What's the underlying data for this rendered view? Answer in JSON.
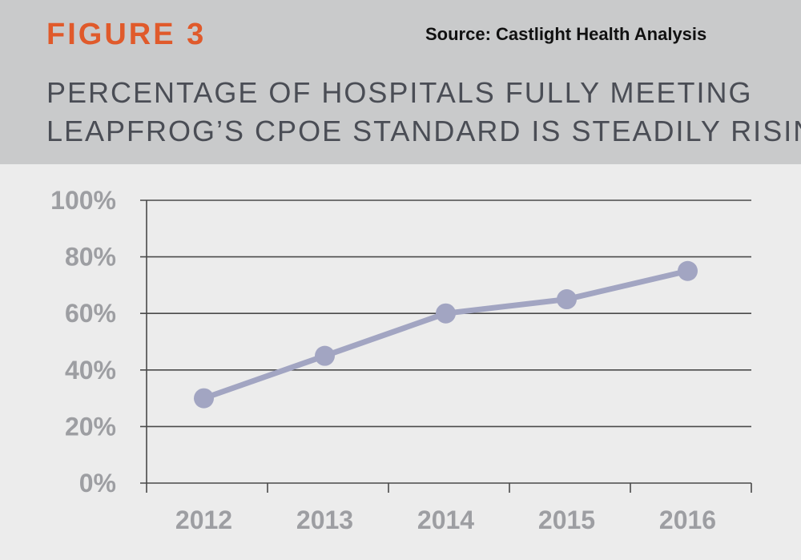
{
  "header": {
    "figure_label": "FIGURE 3",
    "source": "Source: Castlight Health Analysis",
    "title_line1": "PERCENTAGE OF HOSPITALS FULLY MEETING",
    "title_line2": "LEAPFROG’S CPOE STANDARD IS STEADILY RISING"
  },
  "colors": {
    "accent": "#e05a2b",
    "header_bg": "#c9cacb",
    "plot_bg": "#ececec",
    "series": "#a2a5c2",
    "grid": "#4a4a4a",
    "tick_text": "#9d9ea2"
  },
  "chart_data": {
    "type": "line",
    "categories": [
      "2012",
      "2013",
      "2014",
      "2015",
      "2016"
    ],
    "series": [
      {
        "name": "",
        "values": [
          30,
          45,
          60,
          65,
          75
        ]
      }
    ],
    "title": "PERCENTAGE OF HOSPITALS FULLY MEETING LEAPFROG’S CPOE STANDARD IS STEADILY RISING",
    "xlabel": "",
    "ylabel": "",
    "ylim": [
      0,
      100
    ],
    "yticks": [
      0,
      20,
      40,
      60,
      80,
      100
    ],
    "ytick_labels": [
      "0%",
      "20%",
      "40%",
      "60%",
      "80%",
      "100%"
    ],
    "grid": true,
    "legend": "none"
  }
}
